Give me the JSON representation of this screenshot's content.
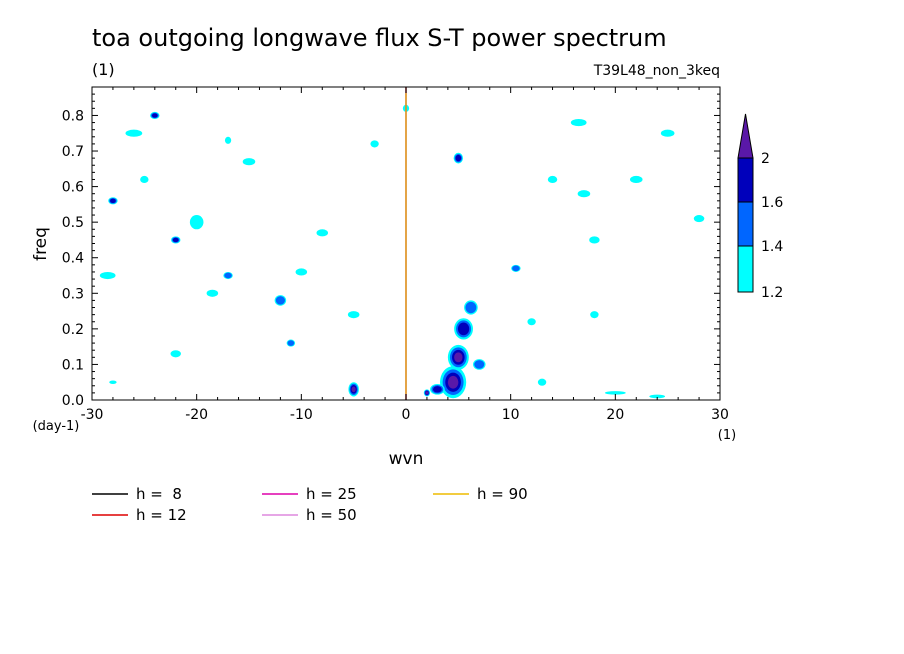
{
  "chart_data": {
    "type": "heatmap",
    "title": "toa outgoing longwave flux S-T power spectrum",
    "subtitle": "(1)",
    "run_label": "T39L48_non_3keq",
    "xlabel": "wvn",
    "ylabel": "freq",
    "x_unit": "(1)",
    "y_unit": "(day-1)",
    "xlim": [
      -30,
      30
    ],
    "ylim": [
      0,
      0.88
    ],
    "x_ticks": [
      -30,
      -20,
      -10,
      0,
      10,
      20,
      30
    ],
    "x_tick_labels": [
      "-30",
      "-20",
      "-10",
      "0",
      "10",
      "20",
      "30"
    ],
    "y_ticks": [
      0,
      0.1,
      0.2,
      0.3,
      0.4,
      0.5,
      0.6,
      0.7,
      0.8
    ],
    "y_tick_labels": [
      "0.0",
      "0.1",
      "0.2",
      "0.3",
      "0.4",
      "0.5",
      "0.6",
      "0.7",
      "0.8"
    ],
    "colorbar": {
      "levels": [
        1.2,
        1.4,
        1.6,
        2
      ],
      "labels": [
        "1.2",
        "1.4",
        "1.6",
        "2"
      ],
      "colors": [
        "#00ffff",
        "#0066ff",
        "#0000bb",
        "#5a18a8"
      ]
    },
    "spectral_blobs": [
      {
        "x": 4.5,
        "y": 0.05,
        "w": 2.5,
        "h": 0.09,
        "level": 3
      },
      {
        "x": 5.0,
        "y": 0.12,
        "w": 2.0,
        "h": 0.07,
        "level": 3
      },
      {
        "x": 5.5,
        "y": 0.2,
        "w": 1.8,
        "h": 0.06,
        "level": 2
      },
      {
        "x": 6.2,
        "y": 0.26,
        "w": 1.3,
        "h": 0.04,
        "level": 1
      },
      {
        "x": 3.0,
        "y": 0.03,
        "w": 1.4,
        "h": 0.03,
        "level": 2
      },
      {
        "x": 7.0,
        "y": 0.1,
        "w": 1.2,
        "h": 0.03,
        "level": 1
      },
      {
        "x": -5.0,
        "y": 0.03,
        "w": 1.0,
        "h": 0.04,
        "level": 3
      },
      {
        "x": 10.5,
        "y": 0.37,
        "w": 0.9,
        "h": 0.02,
        "level": 1
      },
      {
        "x": 5.0,
        "y": 0.68,
        "w": 0.9,
        "h": 0.03,
        "level": 2
      },
      {
        "x": -22.0,
        "y": 0.45,
        "w": 0.9,
        "h": 0.02,
        "level": 2
      },
      {
        "x": -24.0,
        "y": 0.8,
        "w": 0.9,
        "h": 0.02,
        "level": 2
      },
      {
        "x": -28.0,
        "y": 0.56,
        "w": 0.9,
        "h": 0.02,
        "level": 2
      },
      {
        "x": -11.0,
        "y": 0.16,
        "w": 0.8,
        "h": 0.02,
        "level": 1
      },
      {
        "x": -17.0,
        "y": 0.35,
        "w": 0.9,
        "h": 0.02,
        "level": 1
      },
      {
        "x": -12.0,
        "y": 0.28,
        "w": 1.1,
        "h": 0.03,
        "level": 1
      },
      {
        "x": -26.0,
        "y": 0.75,
        "w": 1.6,
        "h": 0.02,
        "level": 0
      },
      {
        "x": -28.5,
        "y": 0.35,
        "w": 1.5,
        "h": 0.02,
        "level": 0
      },
      {
        "x": -20.0,
        "y": 0.5,
        "w": 1.3,
        "h": 0.04,
        "level": 0
      },
      {
        "x": -15.0,
        "y": 0.67,
        "w": 1.2,
        "h": 0.02,
        "level": 0
      },
      {
        "x": -8.0,
        "y": 0.47,
        "w": 1.1,
        "h": 0.02,
        "level": 0
      },
      {
        "x": -5.0,
        "y": 0.24,
        "w": 1.1,
        "h": 0.02,
        "level": 0
      },
      {
        "x": 0.0,
        "y": 0.82,
        "w": 0.6,
        "h": 0.02,
        "level": 0
      },
      {
        "x": 16.5,
        "y": 0.78,
        "w": 1.5,
        "h": 0.02,
        "level": 0
      },
      {
        "x": 17.0,
        "y": 0.58,
        "w": 1.2,
        "h": 0.02,
        "level": 0
      },
      {
        "x": 22.0,
        "y": 0.62,
        "w": 1.2,
        "h": 0.02,
        "level": 0
      },
      {
        "x": 25.0,
        "y": 0.75,
        "w": 1.3,
        "h": 0.02,
        "level": 0
      },
      {
        "x": 28.0,
        "y": 0.51,
        "w": 1.0,
        "h": 0.02,
        "level": 0
      },
      {
        "x": 14.0,
        "y": 0.62,
        "w": 0.9,
        "h": 0.02,
        "level": 0
      },
      {
        "x": 18.0,
        "y": 0.45,
        "w": 1.0,
        "h": 0.02,
        "level": 0
      },
      {
        "x": 20.0,
        "y": 0.02,
        "w": 2.0,
        "h": 0.01,
        "level": 0
      },
      {
        "x": 24.0,
        "y": 0.01,
        "w": 1.5,
        "h": 0.01,
        "level": 0
      },
      {
        "x": 13.0,
        "y": 0.05,
        "w": 0.8,
        "h": 0.02,
        "level": 0
      },
      {
        "x": -22.0,
        "y": 0.13,
        "w": 1.0,
        "h": 0.02,
        "level": 0
      },
      {
        "x": -18.5,
        "y": 0.3,
        "w": 1.1,
        "h": 0.02,
        "level": 0
      },
      {
        "x": -10.0,
        "y": 0.36,
        "w": 1.1,
        "h": 0.02,
        "level": 0
      },
      {
        "x": -25.0,
        "y": 0.62,
        "w": 0.8,
        "h": 0.02,
        "level": 0
      },
      {
        "x": -3.0,
        "y": 0.72,
        "w": 0.8,
        "h": 0.02,
        "level": 0
      },
      {
        "x": 12.0,
        "y": 0.22,
        "w": 0.8,
        "h": 0.02,
        "level": 0
      },
      {
        "x": -17.0,
        "y": 0.73,
        "w": 0.6,
        "h": 0.02,
        "level": 0
      },
      {
        "x": -28.0,
        "y": 0.05,
        "w": 0.7,
        "h": 0.01,
        "level": 0
      },
      {
        "x": 18.0,
        "y": 0.24,
        "w": 0.8,
        "h": 0.02,
        "level": 0
      },
      {
        "x": 2.0,
        "y": 0.02,
        "w": 0.6,
        "h": 0.02,
        "level": 3
      }
    ],
    "series": [
      {
        "name": "h =  8",
        "h": 8,
        "color": "#000000"
      },
      {
        "name": "h = 12",
        "h": 12,
        "color": "#dd0000"
      },
      {
        "name": "h = 25",
        "h": 25,
        "color": "#dd00aa"
      },
      {
        "name": "h = 50",
        "h": 50,
        "color": "#dd88dd"
      },
      {
        "name": "h = 90",
        "h": 90,
        "color": "#eebb00"
      }
    ]
  }
}
